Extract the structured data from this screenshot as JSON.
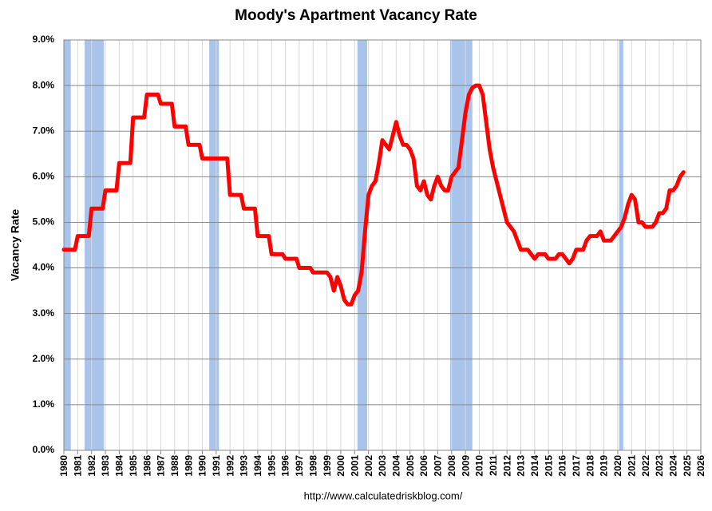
{
  "chart_data": {
    "type": "line",
    "title": "Moody's Apartment Vacancy Rate",
    "y_label": "Vacancy Rate",
    "source": "http://www.calculatedriskblog.com/",
    "xlim": [
      1980,
      2026
    ],
    "ylim": [
      0,
      9
    ],
    "xticks": [
      1980,
      1981,
      1982,
      1983,
      1984,
      1985,
      1986,
      1987,
      1988,
      1989,
      1990,
      1991,
      1992,
      1993,
      1994,
      1995,
      1996,
      1997,
      1998,
      1999,
      2000,
      2001,
      2002,
      2003,
      2004,
      2005,
      2006,
      2007,
      2008,
      2009,
      2010,
      2011,
      2012,
      2013,
      2014,
      2015,
      2016,
      2017,
      2018,
      2019,
      2020,
      2021,
      2022,
      2023,
      2024,
      2025,
      2026
    ],
    "yticks": [
      {
        "value": 0,
        "label": "0.0%"
      },
      {
        "value": 1,
        "label": "1.0%"
      },
      {
        "value": 2,
        "label": "2.0%"
      },
      {
        "value": 3,
        "label": "3.0%"
      },
      {
        "value": 4,
        "label": "4.0%"
      },
      {
        "value": 5,
        "label": "5.0%"
      },
      {
        "value": 6,
        "label": "6.0%"
      },
      {
        "value": 7,
        "label": "7.0%"
      },
      {
        "value": 8,
        "label": "8.0%"
      },
      {
        "value": 9,
        "label": "9.0%"
      }
    ],
    "grid": true,
    "recession_color": "#a9c4eb",
    "recessions": [
      [
        1980.0,
        1980.5
      ],
      [
        1981.5,
        1982.9
      ],
      [
        1990.5,
        1991.2
      ],
      [
        2001.2,
        2001.9
      ],
      [
        2007.9,
        2009.5
      ],
      [
        2020.1,
        2020.4
      ]
    ],
    "x": [
      1980.0,
      1980.8,
      1981.0,
      1981.8,
      1982.0,
      1982.8,
      1983.0,
      1983.8,
      1984.0,
      1984.8,
      1985.0,
      1985.8,
      1986.0,
      1986.8,
      1987.0,
      1987.8,
      1988.0,
      1988.8,
      1989.0,
      1989.8,
      1990.0,
      1991.8,
      1992.0,
      1992.8,
      1993.0,
      1993.8,
      1994.0,
      1994.8,
      1995.0,
      1995.8,
      1996.0,
      1996.8,
      1997.0,
      1997.8,
      1998.0,
      1999.0,
      1999.25,
      1999.5,
      1999.75,
      2000.0,
      2000.25,
      2000.5,
      2000.75,
      2001.0,
      2001.25,
      2001.5,
      2001.75,
      2002.0,
      2002.25,
      2002.5,
      2002.75,
      2003.0,
      2003.5,
      2003.75,
      2004.0,
      2004.25,
      2004.5,
      2004.75,
      2005.0,
      2005.25,
      2005.5,
      2005.75,
      2006.0,
      2006.25,
      2006.5,
      2006.75,
      2007.0,
      2007.25,
      2007.5,
      2007.75,
      2008.0,
      2008.5,
      2008.75,
      2009.0,
      2009.25,
      2009.5,
      2009.75,
      2010.0,
      2010.25,
      2010.5,
      2010.75,
      2011.0,
      2011.25,
      2011.5,
      2011.75,
      2012.0,
      2012.5,
      2013.0,
      2013.5,
      2014.0,
      2014.25,
      2014.75,
      2015.0,
      2015.5,
      2015.75,
      2016.0,
      2016.5,
      2016.75,
      2017.0,
      2017.5,
      2017.75,
      2018.0,
      2018.5,
      2018.75,
      2019.0,
      2019.5,
      2020.0,
      2020.25,
      2020.5,
      2020.75,
      2021.0,
      2021.25,
      2021.5,
      2021.75,
      2022.0,
      2022.5,
      2022.75,
      2023.0,
      2023.25,
      2023.5,
      2023.75,
      2024.0,
      2024.25,
      2024.5,
      2024.75
    ],
    "series": [
      {
        "name": "Vacancy Rate",
        "color": "#ff0000",
        "values": [
          4.4,
          4.4,
          4.7,
          4.7,
          5.3,
          5.3,
          5.7,
          5.7,
          6.3,
          6.3,
          7.3,
          7.3,
          7.8,
          7.8,
          7.6,
          7.6,
          7.1,
          7.1,
          6.7,
          6.7,
          6.4,
          6.4,
          5.6,
          5.6,
          5.3,
          5.3,
          4.7,
          4.7,
          4.3,
          4.3,
          4.2,
          4.2,
          4.0,
          4.0,
          3.9,
          3.9,
          3.8,
          3.5,
          3.8,
          3.6,
          3.3,
          3.2,
          3.2,
          3.4,
          3.5,
          3.9,
          4.8,
          5.6,
          5.8,
          5.9,
          6.3,
          6.8,
          6.6,
          6.9,
          7.2,
          6.9,
          6.7,
          6.7,
          6.6,
          6.4,
          5.8,
          5.7,
          5.9,
          5.6,
          5.5,
          5.8,
          6.0,
          5.8,
          5.7,
          5.7,
          6.0,
          6.2,
          6.8,
          7.4,
          7.8,
          7.95,
          8.0,
          8.0,
          7.8,
          7.2,
          6.6,
          6.2,
          5.9,
          5.6,
          5.3,
          5.0,
          4.8,
          4.4,
          4.4,
          4.2,
          4.3,
          4.3,
          4.2,
          4.2,
          4.3,
          4.3,
          4.1,
          4.2,
          4.4,
          4.4,
          4.6,
          4.7,
          4.7,
          4.8,
          4.6,
          4.6,
          4.8,
          4.9,
          5.1,
          5.4,
          5.6,
          5.5,
          5.0,
          5.0,
          4.9,
          4.9,
          5.0,
          5.2,
          5.2,
          5.3,
          5.7,
          5.7,
          5.8,
          6.0,
          6.1
        ]
      }
    ]
  }
}
